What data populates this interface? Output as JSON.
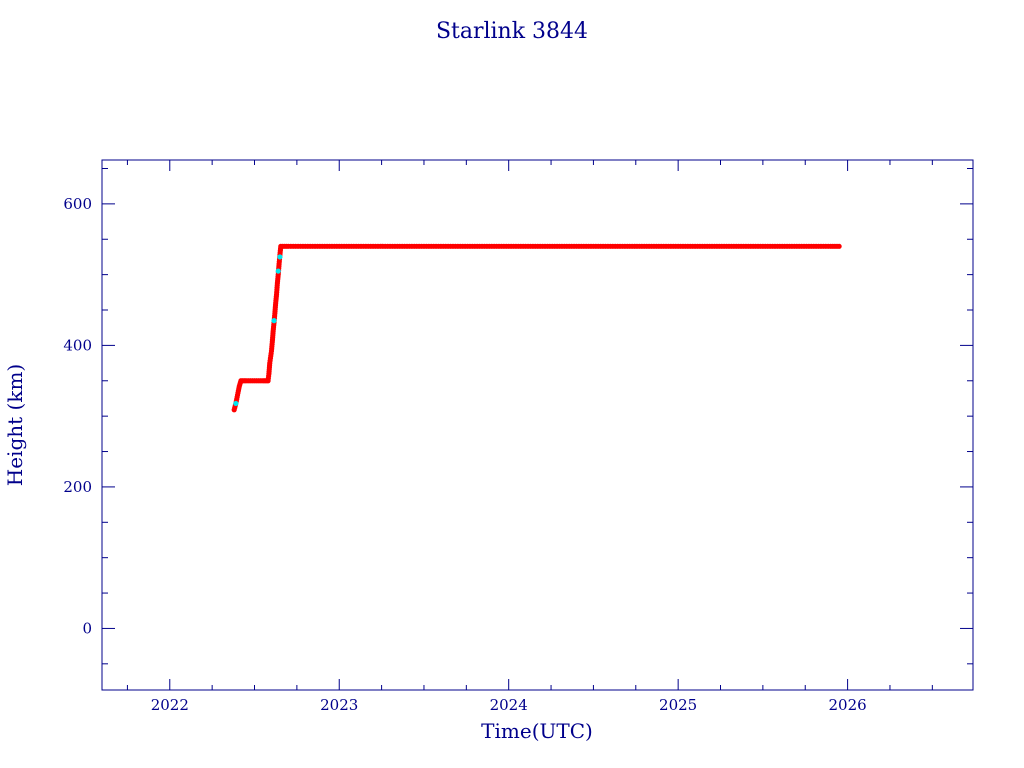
{
  "chart_data": {
    "type": "scatter",
    "title": "Starlink 3844",
    "xlabel": "Time(UTC)",
    "ylabel": "Height (km)",
    "xlim": [
      2021.6,
      2026.74
    ],
    "ylim": [
      -87,
      662
    ],
    "x_ticks": [
      2022,
      2023,
      2024,
      2025,
      2026
    ],
    "x_tick_labels": [
      "2022",
      "2023",
      "2024",
      "2025",
      "2026"
    ],
    "y_ticks": [
      0,
      200,
      400,
      600
    ],
    "y_tick_labels": [
      "0",
      "200",
      "400",
      "600"
    ],
    "grid": false,
    "legend": "none",
    "colors": {
      "axis": "#00008b",
      "series_main": "#ff0000",
      "series_highlight": "#00e5ee"
    },
    "series": [
      {
        "color": "#ff0000",
        "points": [
          [
            2022.38,
            309
          ],
          [
            2022.39,
            318
          ],
          [
            2022.4,
            330
          ],
          [
            2022.41,
            342
          ],
          [
            2022.42,
            350
          ],
          [
            2022.45,
            350
          ],
          [
            2022.5,
            350
          ],
          [
            2022.55,
            350
          ],
          [
            2022.58,
            350
          ],
          [
            2022.585,
            360
          ],
          [
            2022.59,
            375
          ],
          [
            2022.6,
            392
          ],
          [
            2022.605,
            405
          ],
          [
            2022.61,
            420
          ],
          [
            2022.615,
            432
          ],
          [
            2022.62,
            445
          ],
          [
            2022.625,
            460
          ],
          [
            2022.63,
            472
          ],
          [
            2022.635,
            488
          ],
          [
            2022.64,
            500
          ],
          [
            2022.645,
            515
          ],
          [
            2022.65,
            528
          ],
          [
            2022.655,
            540
          ],
          [
            2022.7,
            540
          ],
          [
            2022.8,
            540
          ],
          [
            2022.9,
            540
          ],
          [
            2023.0,
            540
          ],
          [
            2023.1,
            540
          ],
          [
            2023.2,
            540
          ],
          [
            2023.3,
            540
          ],
          [
            2023.4,
            540
          ],
          [
            2023.5,
            540
          ],
          [
            2023.6,
            540
          ],
          [
            2023.7,
            540
          ],
          [
            2023.8,
            540
          ],
          [
            2023.9,
            540
          ],
          [
            2024.0,
            540
          ],
          [
            2024.1,
            540
          ],
          [
            2024.2,
            540
          ],
          [
            2024.3,
            540
          ],
          [
            2024.4,
            540
          ],
          [
            2024.5,
            540
          ],
          [
            2024.6,
            540
          ],
          [
            2024.7,
            540
          ],
          [
            2024.8,
            540
          ],
          [
            2024.9,
            540
          ],
          [
            2025.0,
            540
          ],
          [
            2025.1,
            540
          ],
          [
            2025.2,
            540
          ],
          [
            2025.3,
            540
          ],
          [
            2025.4,
            540
          ],
          [
            2025.5,
            540
          ],
          [
            2025.6,
            540
          ],
          [
            2025.7,
            540
          ],
          [
            2025.8,
            540
          ],
          [
            2025.9,
            540
          ],
          [
            2025.95,
            540
          ]
        ]
      },
      {
        "color": "#00e5ee",
        "points": [
          [
            2022.39,
            318
          ],
          [
            2022.615,
            435
          ],
          [
            2022.64,
            505
          ],
          [
            2022.65,
            525
          ]
        ]
      }
    ]
  }
}
